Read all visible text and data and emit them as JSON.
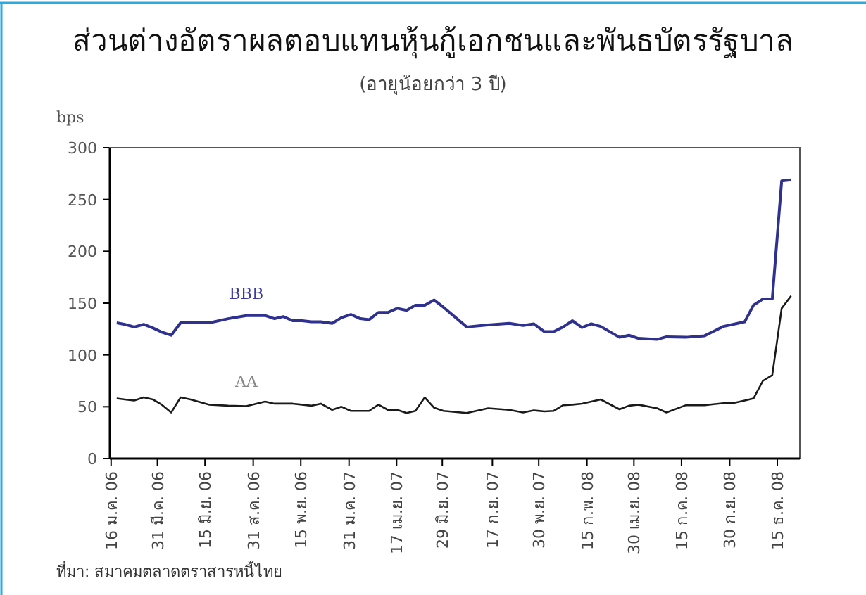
{
  "chart_data": {
    "type": "line",
    "title": "ส่วนต่างอัตราผลตอบแทนหุ้นกู้เอกชนและพันธบัตรรัฐบาล",
    "subtitle": "(อายุน้อยกว่า 3 ปี)",
    "ylabel": "bps",
    "x": [
      "2006-01-25",
      "2006-02-07",
      "2006-02-22",
      "2006-03-09",
      "2006-03-24",
      "2006-04-07",
      "2006-04-22",
      "2006-05-07",
      "2006-05-23",
      "2006-06-22",
      "2006-07-22",
      "2006-08-20",
      "2006-09-19",
      "2006-10-04",
      "2006-10-18",
      "2006-11-02",
      "2006-11-17",
      "2006-12-02",
      "2006-12-17",
      "2007-01-04",
      "2007-01-19",
      "2007-02-03",
      "2007-02-18",
      "2007-03-04",
      "2007-03-19",
      "2007-04-03",
      "2007-04-18",
      "2007-05-03",
      "2007-05-17",
      "2007-06-01",
      "2007-06-16",
      "2007-07-01",
      "2007-08-07",
      "2007-09-10",
      "2007-10-14",
      "2007-11-05",
      "2007-11-22",
      "2007-12-09",
      "2007-12-24",
      "2008-01-08",
      "2008-01-23",
      "2008-02-07",
      "2008-02-22",
      "2008-03-08",
      "2008-04-07",
      "2008-04-22",
      "2008-05-07",
      "2008-06-06",
      "2008-06-21",
      "2008-07-22",
      "2008-08-21",
      "2008-09-20",
      "2008-10-05",
      "2008-10-24",
      "2008-11-07",
      "2008-11-22",
      "2008-12-07",
      "2008-12-22",
      "2009-01-06"
    ],
    "series": [
      {
        "name": "BBB",
        "color": "#2e3192",
        "values": [
          131,
          129.5,
          127,
          129.5,
          126,
          122,
          119,
          131,
          131,
          131,
          135,
          138,
          138,
          135,
          137,
          133,
          133,
          132,
          132,
          130.5,
          136,
          139,
          135,
          134,
          141,
          141,
          145,
          143,
          148,
          148,
          153,
          146,
          127,
          129,
          130.5,
          128.5,
          130,
          122.5,
          122.5,
          127,
          133,
          126.5,
          130,
          127.5,
          117,
          119,
          116,
          115,
          117.5,
          117,
          118.5,
          127.5,
          129.5,
          132,
          148,
          154,
          154,
          268,
          269
        ]
      },
      {
        "name": "AA",
        "color": "#1a1a1a",
        "values": [
          58,
          57,
          56,
          59,
          57,
          52,
          44.5,
          59,
          57,
          52,
          51,
          50.5,
          55,
          53,
          53,
          53,
          52,
          51,
          53,
          47,
          50,
          46,
          46,
          46,
          52,
          47,
          47,
          44,
          46,
          59,
          49,
          46,
          44,
          48.5,
          47,
          44.5,
          46.5,
          45.5,
          46,
          51.5,
          52,
          53,
          55,
          57,
          47.5,
          51,
          52,
          48.5,
          44.5,
          51.5,
          51.5,
          53.5,
          53.5,
          56,
          58,
          75,
          80.5,
          145,
          157
        ]
      }
    ],
    "xlim": [
      "2006-01-14",
      "2009-01-20"
    ],
    "xticks": [
      {
        "value": "2006-01-16",
        "label": "16 ม.ค. 06"
      },
      {
        "value": "2006-03-31",
        "label": "31 มี.ค. 06"
      },
      {
        "value": "2006-06-15",
        "label": "15 มิ.ย. 06"
      },
      {
        "value": "2006-08-31",
        "label": "31 ส.ค. 06"
      },
      {
        "value": "2006-11-15",
        "label": "15 พ.ย. 06"
      },
      {
        "value": "2007-01-31",
        "label": "31 ม.ค. 07"
      },
      {
        "value": "2007-04-17",
        "label": "17 เม.ย. 07"
      },
      {
        "value": "2007-06-29",
        "label": "29 มิ.ย. 07"
      },
      {
        "value": "2007-09-17",
        "label": "17 ก.ย. 07"
      },
      {
        "value": "2007-11-30",
        "label": "30 พ.ย. 07"
      },
      {
        "value": "2008-02-15",
        "label": "15 ก.พ. 08"
      },
      {
        "value": "2008-04-30",
        "label": "30 เม.ย. 08"
      },
      {
        "value": "2008-07-15",
        "label": "15 ก.ค. 08"
      },
      {
        "value": "2008-09-30",
        "label": "30 ก.ย. 08"
      },
      {
        "value": "2008-12-15",
        "label": "15 ธ.ค. 08"
      }
    ],
    "ylim": [
      0,
      300
    ],
    "yticks": [
      0,
      50,
      100,
      150,
      200,
      250,
      300
    ],
    "grid": false,
    "legend": false,
    "marker": "none",
    "line_style": "solid",
    "annotations": [
      "ที่มา:  สมาคมตลาดตราสารหนี้ไทย"
    ]
  }
}
